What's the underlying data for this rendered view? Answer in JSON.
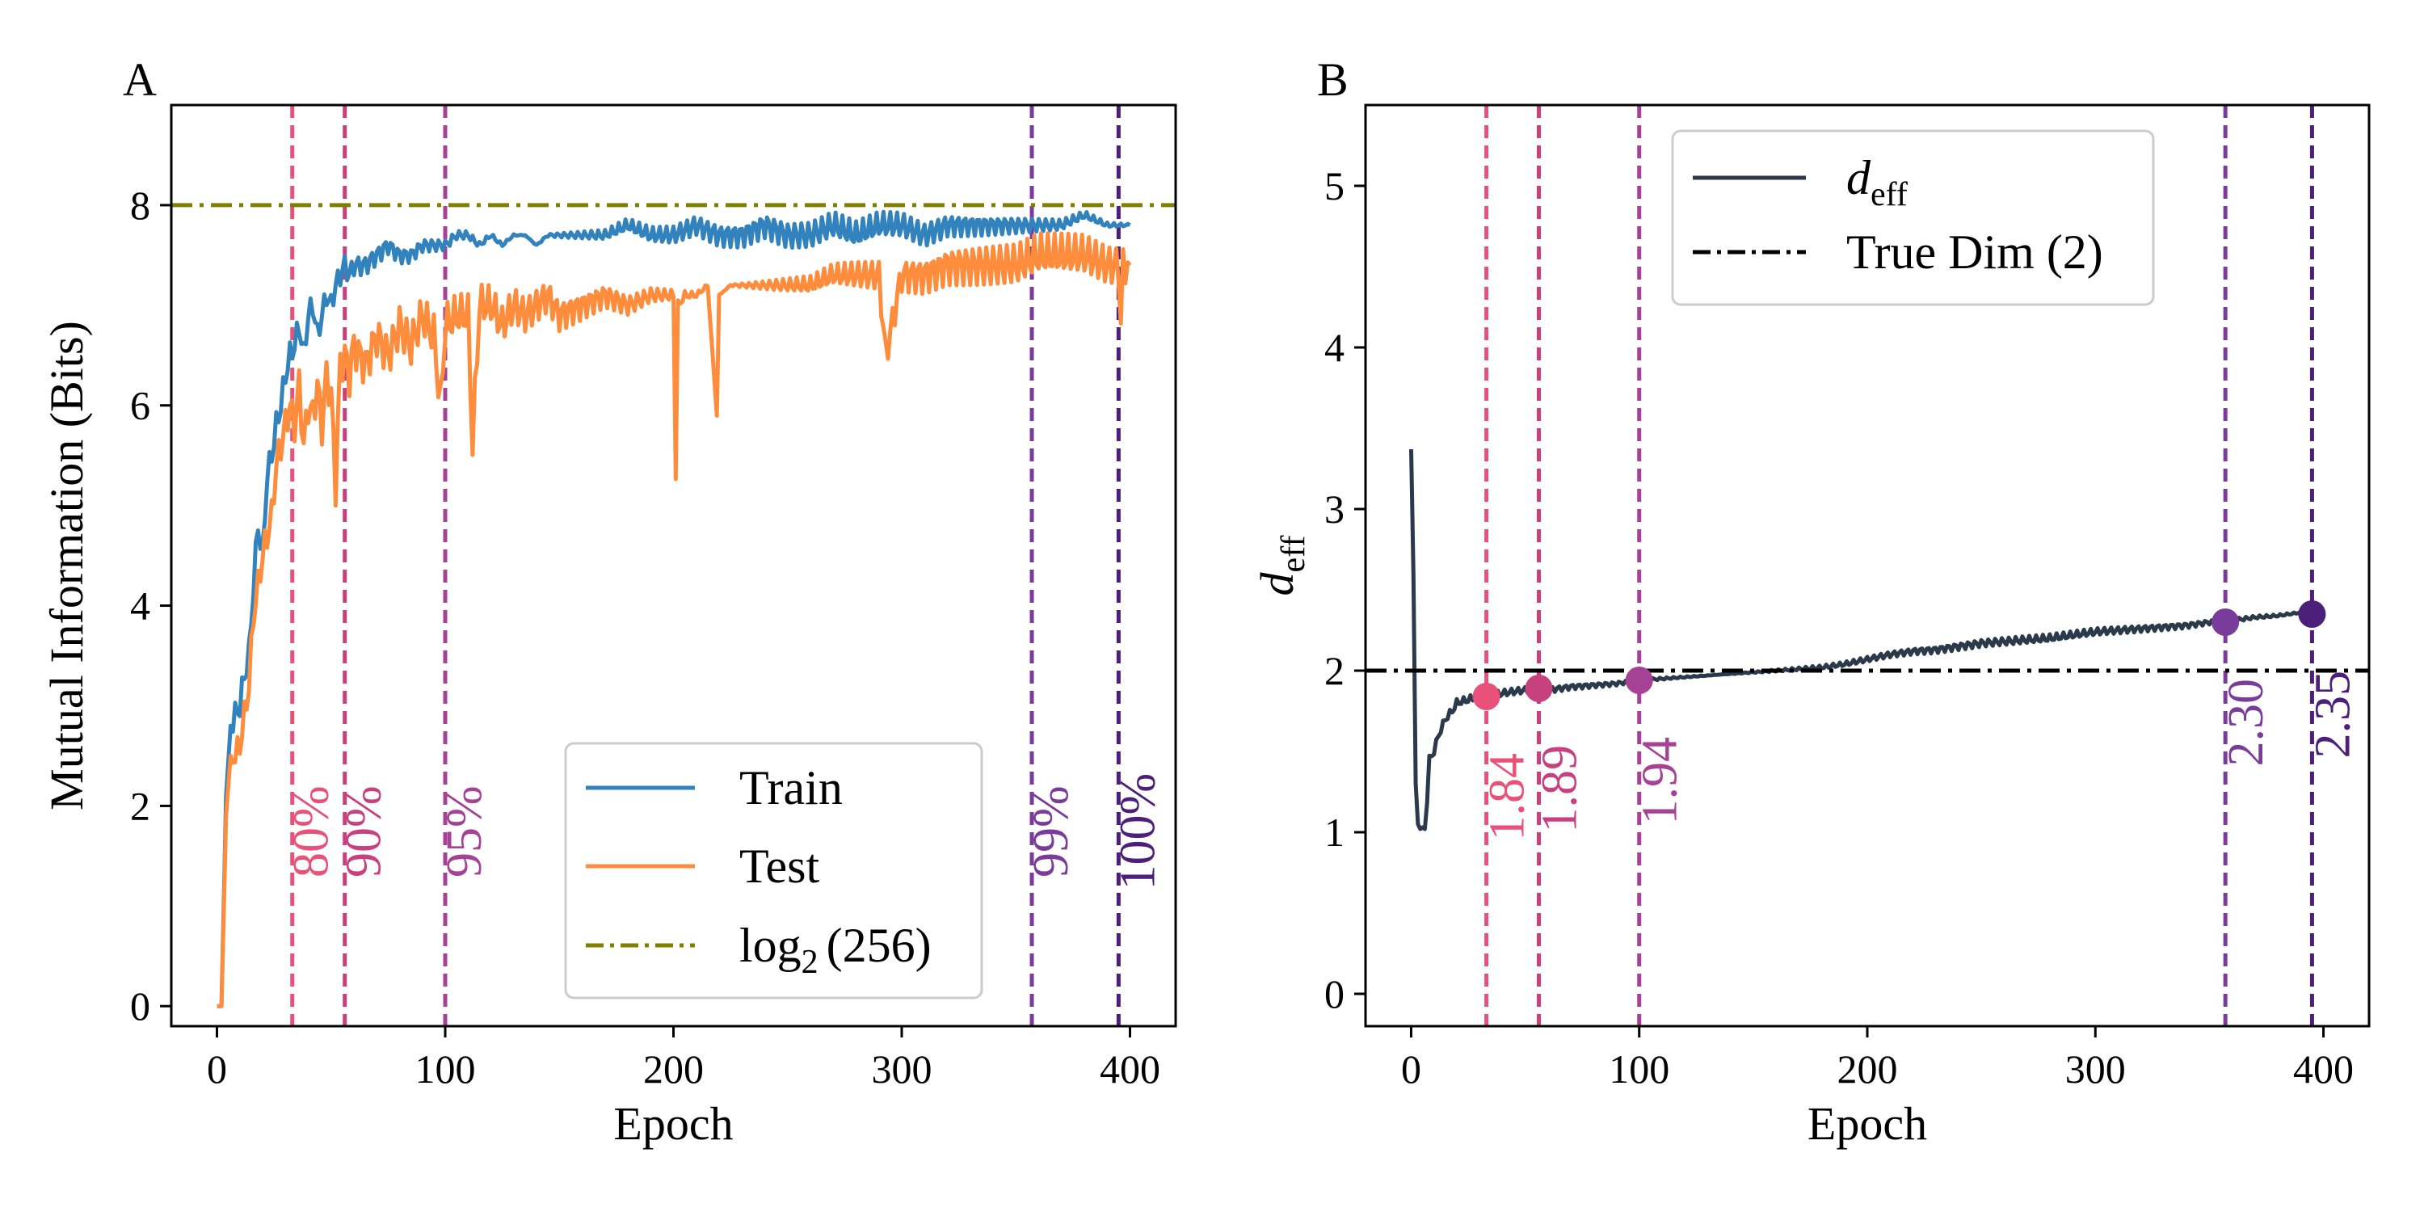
{
  "chart_data": [
    {
      "panel": "A",
      "type": "line",
      "xlabel": "Epoch",
      "ylabel": "Mutual Information (Bits)",
      "xlim": [
        -20,
        420
      ],
      "ylim": [
        -0.2,
        9.0
      ],
      "xticks": [
        0,
        100,
        200,
        300,
        400
      ],
      "yticks": [
        0,
        2,
        4,
        6,
        8
      ],
      "legend_loc": "lower-right",
      "series": [
        {
          "name": "Train",
          "color": "#3182bd",
          "x": [
            0,
            2,
            4,
            6,
            8,
            10,
            12,
            14,
            16,
            18,
            20,
            22,
            24,
            26,
            28,
            30,
            32,
            34,
            36,
            38,
            40,
            42,
            44,
            46,
            48,
            50,
            52,
            54,
            56,
            58,
            60,
            65,
            70,
            75,
            80,
            85,
            90,
            95,
            100,
            105,
            110,
            115,
            120,
            125,
            130,
            135,
            140,
            145,
            150,
            160,
            170,
            180,
            190,
            200,
            210,
            220,
            230,
            240,
            250,
            260,
            270,
            280,
            290,
            300,
            310,
            320,
            330,
            340,
            350,
            360,
            370,
            380,
            390,
            395,
            400
          ],
          "values": [
            0.0,
            0.0,
            2.1,
            2.8,
            2.9,
            3.0,
            3.3,
            3.5,
            4.2,
            4.8,
            4.5,
            5.3,
            5.5,
            5.8,
            6.0,
            6.3,
            6.5,
            6.6,
            6.8,
            6.5,
            6.9,
            7.0,
            6.7,
            6.9,
            7.1,
            7.0,
            7.2,
            7.3,
            7.4,
            7.3,
            7.4,
            7.4,
            7.5,
            7.6,
            7.5,
            7.5,
            7.6,
            7.6,
            7.6,
            7.7,
            7.7,
            7.6,
            7.7,
            7.6,
            7.7,
            7.7,
            7.6,
            7.7,
            7.7,
            7.7,
            7.7,
            7.8,
            7.7,
            7.7,
            7.8,
            7.7,
            7.7,
            7.8,
            7.7,
            7.7,
            7.8,
            7.7,
            7.8,
            7.8,
            7.7,
            7.8,
            7.8,
            7.8,
            7.8,
            7.8,
            7.8,
            7.9,
            7.8,
            7.8,
            7.8
          ]
        },
        {
          "name": "Test",
          "color": "#fd8d3c",
          "x": [
            0,
            2,
            4,
            6,
            8,
            10,
            12,
            14,
            16,
            18,
            20,
            22,
            24,
            26,
            28,
            30,
            32,
            34,
            36,
            38,
            40,
            42,
            44,
            46,
            48,
            50,
            52,
            54,
            56,
            58,
            60,
            65,
            70,
            75,
            80,
            85,
            90,
            95,
            98,
            100,
            105,
            110,
            112,
            115,
            120,
            125,
            130,
            135,
            140,
            145,
            150,
            160,
            170,
            180,
            190,
            200,
            201,
            202,
            205,
            210,
            215,
            219,
            220,
            225,
            230,
            240,
            250,
            260,
            270,
            280,
            290,
            293,
            300,
            310,
            320,
            330,
            340,
            350,
            360,
            370,
            380,
            390,
            395,
            396,
            397,
            400
          ],
          "values": [
            0.0,
            0.0,
            1.9,
            2.5,
            2.5,
            2.6,
            2.9,
            3.2,
            3.9,
            4.2,
            4.5,
            4.7,
            4.9,
            5.4,
            5.6,
            5.8,
            6.0,
            5.8,
            6.2,
            5.6,
            6.0,
            5.9,
            6.2,
            5.8,
            6.3,
            6.1,
            5.2,
            6.4,
            6.5,
            6.3,
            6.6,
            6.4,
            6.7,
            6.5,
            6.8,
            6.6,
            6.9,
            6.7,
            6.0,
            6.8,
            6.9,
            6.9,
            5.6,
            7.0,
            7.0,
            6.8,
            7.0,
            6.9,
            7.0,
            7.1,
            6.9,
            7.0,
            7.1,
            7.0,
            7.1,
            7.1,
            5.3,
            7.0,
            7.1,
            7.1,
            7.2,
            5.9,
            7.1,
            7.2,
            7.2,
            7.2,
            7.2,
            7.2,
            7.3,
            7.3,
            7.3,
            6.5,
            7.3,
            7.3,
            7.4,
            7.4,
            7.4,
            7.4,
            7.5,
            7.5,
            7.5,
            7.4,
            7.4,
            6.8,
            7.4,
            7.4
          ]
        },
        {
          "name": "log$_2$(256)",
          "legend_label_main": "log",
          "legend_label_sub": "2",
          "legend_label_arg": "(256)",
          "color": "#808000",
          "style": "dashdot",
          "y": 8.0
        }
      ],
      "vlines": [
        {
          "x": 33,
          "label": "80%",
          "color": "#e7517a"
        },
        {
          "x": 56,
          "label": "90%",
          "color": "#c8417f"
        },
        {
          "x": 100,
          "label": "95%",
          "color": "#a64295"
        },
        {
          "x": 357,
          "label": "99%",
          "color": "#7a3c9a"
        },
        {
          "x": 395,
          "label": "100%",
          "color": "#4b1f7a"
        }
      ]
    },
    {
      "panel": "B",
      "type": "line",
      "xlabel": "Epoch",
      "ylabel_main": "d",
      "ylabel_sub": "eff",
      "xlim": [
        -20,
        420
      ],
      "ylim": [
        -0.2,
        5.5
      ],
      "xticks": [
        0,
        100,
        200,
        300,
        400
      ],
      "yticks": [
        0,
        1,
        2,
        3,
        4,
        5
      ],
      "legend_loc": "upper-center",
      "series": [
        {
          "name": "d_eff",
          "legend_label_main": "d",
          "legend_label_sub": "eff",
          "color": "#2b3a4a",
          "x": [
            0,
            1,
            2,
            3,
            4,
            5,
            6,
            7,
            8,
            10,
            12,
            15,
            18,
            20,
            25,
            30,
            33,
            40,
            50,
            56,
            60,
            70,
            80,
            90,
            100,
            110,
            120,
            130,
            140,
            150,
            160,
            170,
            180,
            190,
            200,
            210,
            220,
            230,
            240,
            250,
            260,
            270,
            280,
            290,
            300,
            310,
            320,
            330,
            340,
            350,
            357,
            360,
            370,
            380,
            390,
            395
          ],
          "values": [
            3.37,
            2.6,
            1.3,
            1.05,
            1.02,
            1.03,
            1.02,
            1.2,
            1.45,
            1.5,
            1.6,
            1.7,
            1.75,
            1.8,
            1.82,
            1.84,
            1.84,
            1.86,
            1.88,
            1.89,
            1.88,
            1.9,
            1.91,
            1.92,
            1.94,
            1.95,
            1.96,
            1.97,
            1.98,
            1.99,
            2.0,
            2.01,
            2.02,
            2.04,
            2.07,
            2.1,
            2.12,
            2.13,
            2.15,
            2.17,
            2.18,
            2.19,
            2.2,
            2.22,
            2.24,
            2.25,
            2.26,
            2.27,
            2.28,
            2.3,
            2.3,
            2.31,
            2.33,
            2.34,
            2.36,
            2.35
          ]
        },
        {
          "name": "True Dim (2)",
          "color": "#000000",
          "style": "dashdot",
          "y": 2.0
        }
      ],
      "markers": [
        {
          "x": 33,
          "y": 1.84,
          "color": "#e7517a"
        },
        {
          "x": 56,
          "y": 1.89,
          "color": "#c8417f"
        },
        {
          "x": 100,
          "y": 1.94,
          "color": "#a64295"
        },
        {
          "x": 357,
          "y": 2.3,
          "color": "#7a3c9a"
        },
        {
          "x": 395,
          "y": 2.35,
          "color": "#4b1f7a"
        }
      ],
      "vlines": [
        {
          "x": 33,
          "label": "1.84",
          "color": "#e7517a"
        },
        {
          "x": 56,
          "label": "1.89",
          "color": "#c8417f"
        },
        {
          "x": 100,
          "label": "1.94",
          "color": "#a64295"
        },
        {
          "x": 357,
          "label": "2.30",
          "color": "#7a3c9a"
        },
        {
          "x": 395,
          "label": "2.35",
          "color": "#4b1f7a"
        }
      ]
    }
  ]
}
